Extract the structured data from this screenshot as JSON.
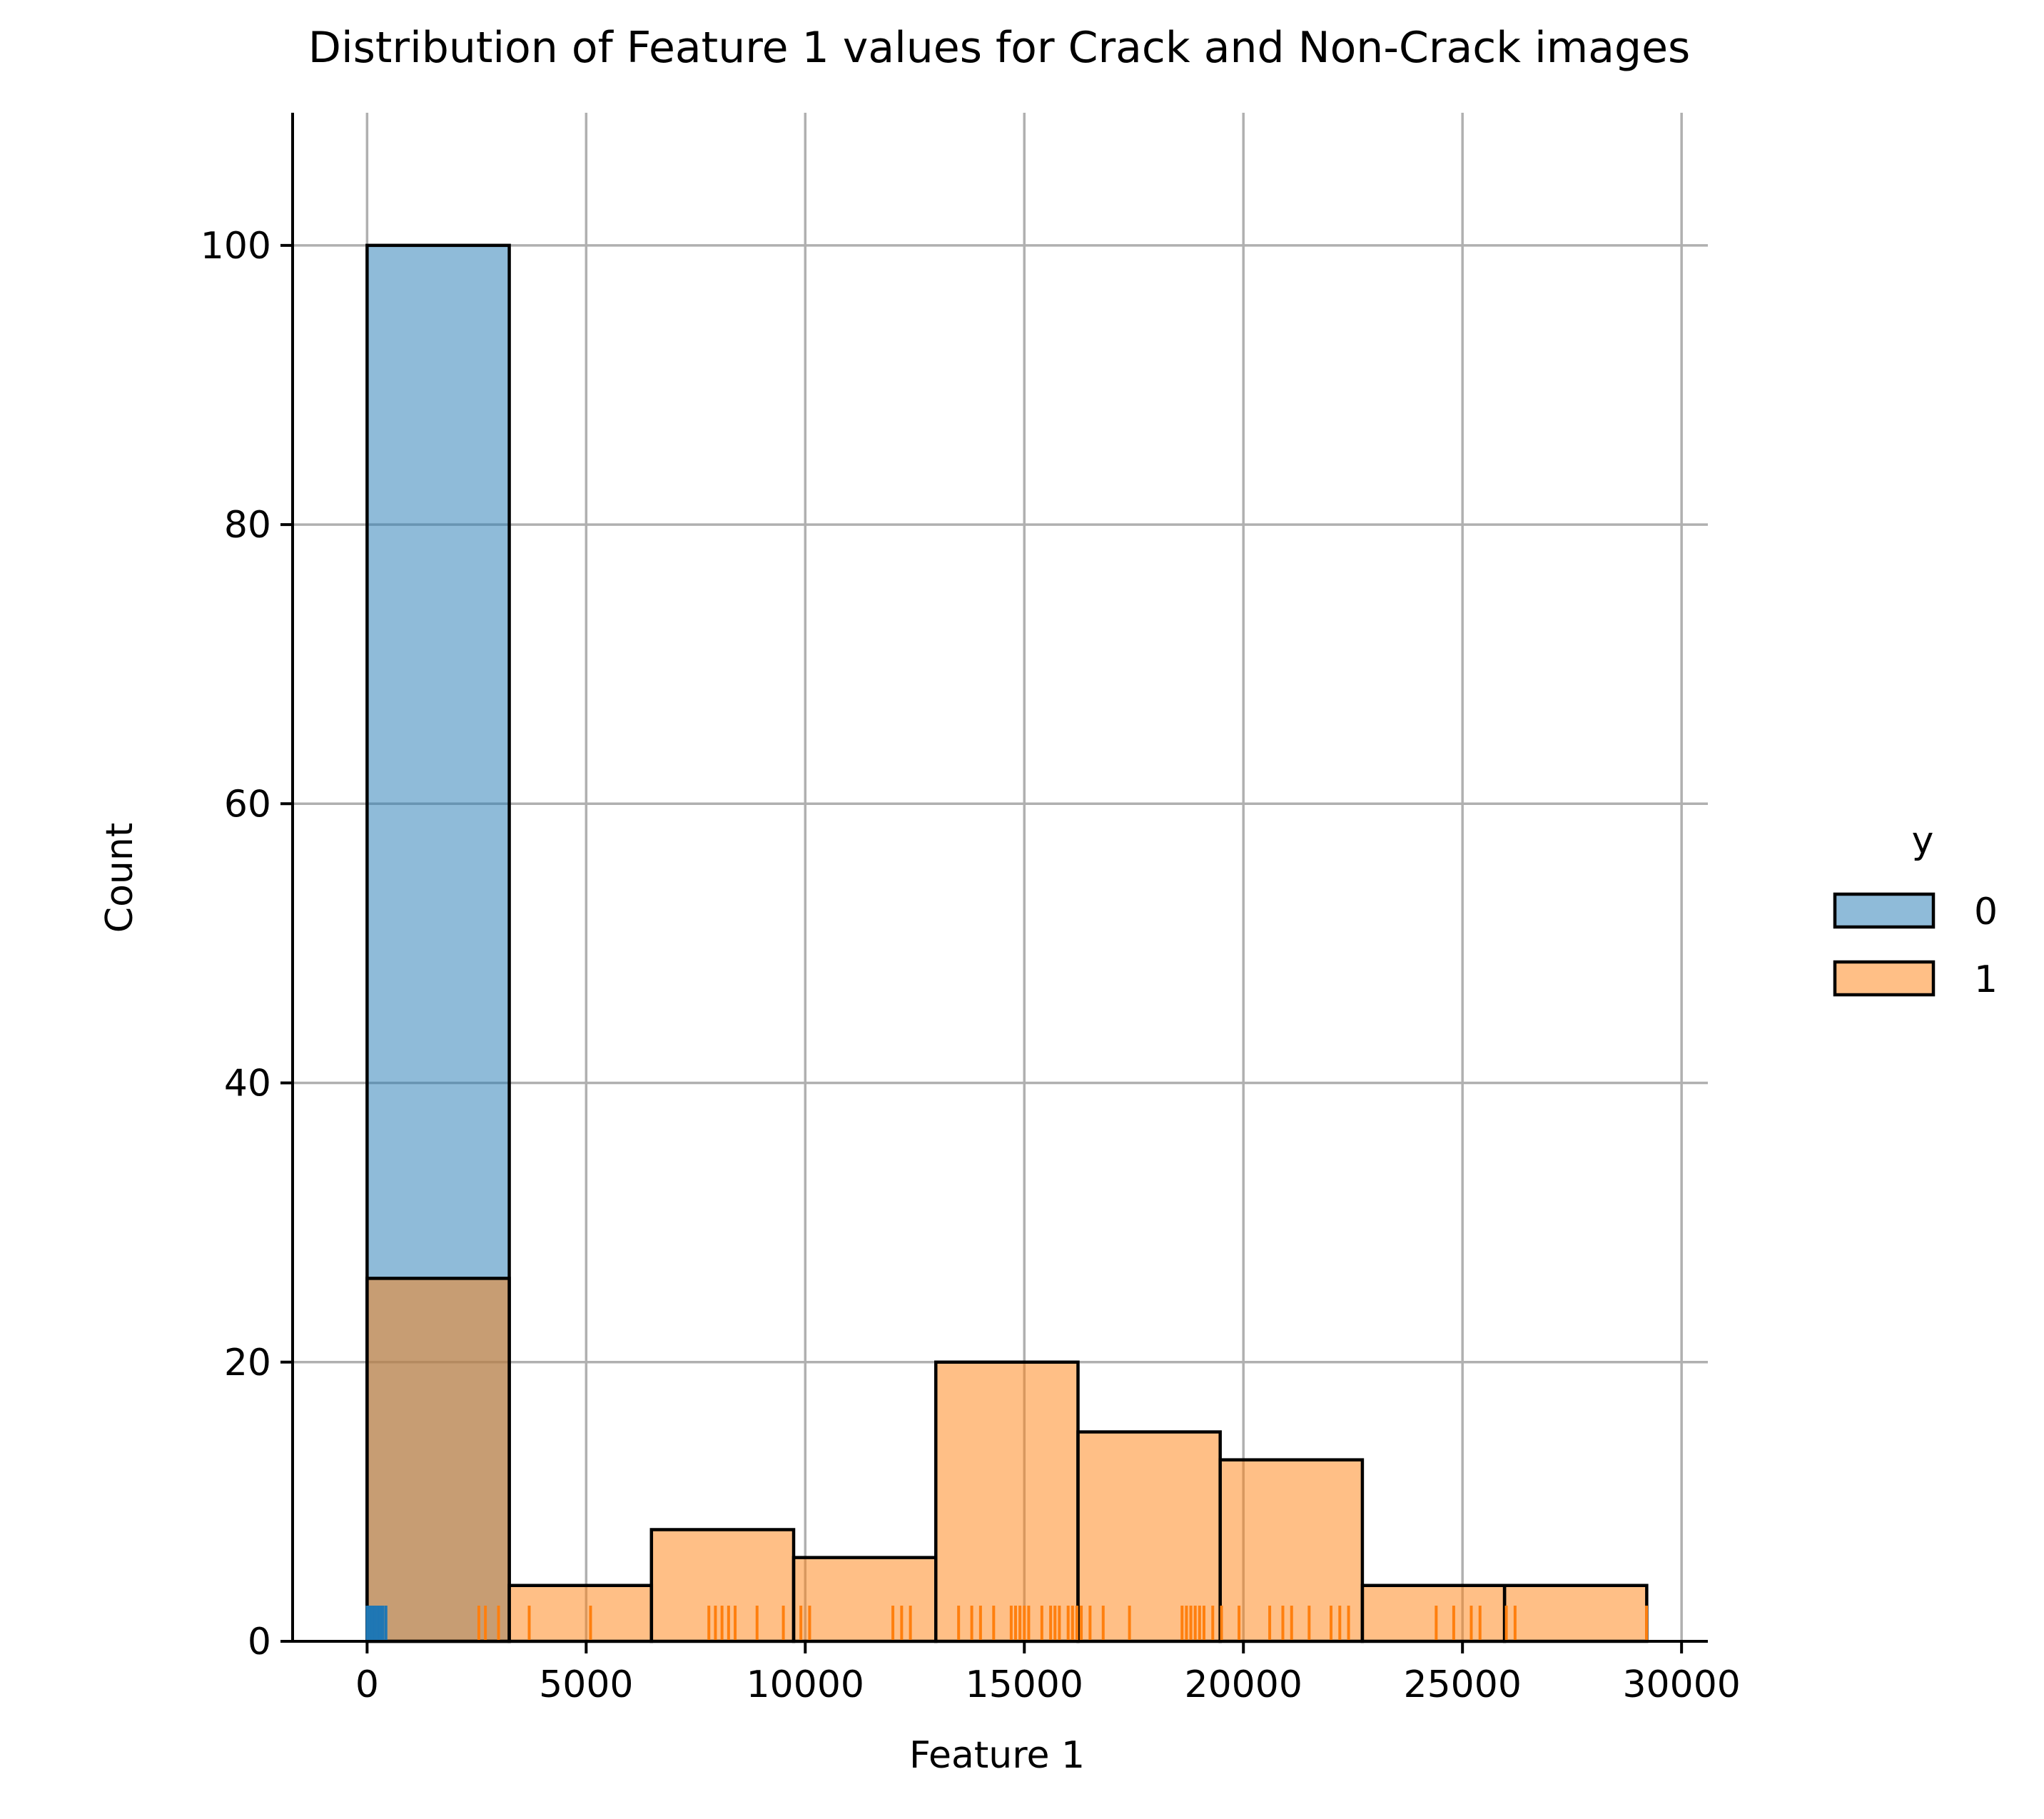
{
  "chart_data": {
    "type": "histogram",
    "title": "Distribution of Feature 1 values for Crack and Non-Crack images",
    "xlabel": "Feature 1",
    "ylabel": "Count",
    "xlim": [
      -1700,
      30600
    ],
    "ylim": [
      0,
      109.5
    ],
    "xticks": [
      0,
      5000,
      10000,
      15000,
      20000,
      25000,
      30000
    ],
    "yticks": [
      0,
      20,
      40,
      60,
      80,
      100
    ],
    "grid": true,
    "legend": {
      "title": "y",
      "position": "right"
    },
    "bin_edges": [
      0,
      3245,
      6490,
      9735,
      12980,
      16225,
      19470,
      22715,
      25960,
      29205
    ],
    "series": [
      {
        "name": "0",
        "color": "#1f77b4",
        "fill_color": "#8fb8d9",
        "counts": [
          100,
          0,
          0,
          0,
          0,
          0,
          0,
          0,
          0
        ],
        "rug": [
          0,
          60,
          120,
          180,
          240,
          300,
          360,
          430
        ]
      },
      {
        "name": "1",
        "color": "#ff7f0e",
        "fill_color": "#fdbb84",
        "counts": [
          26,
          4,
          8,
          6,
          20,
          15,
          13,
          4,
          4
        ],
        "rug": [
          2550,
          2700,
          3000,
          3700,
          5100,
          7800,
          7950,
          8100,
          8250,
          8400,
          8900,
          9500,
          9900,
          10100,
          12000,
          12200,
          12400,
          13500,
          13800,
          14000,
          14300,
          14700,
          14800,
          14900,
          15000,
          15100,
          15400,
          15600,
          15700,
          15800,
          16000,
          16100,
          16200,
          16300,
          16500,
          16800,
          17400,
          18600,
          18700,
          18800,
          18900,
          19000,
          19100,
          19300,
          19500,
          19900,
          20600,
          20900,
          21100,
          21500,
          22000,
          22200,
          22400,
          24400,
          24800,
          25200,
          25400,
          26000,
          26200,
          29200
        ]
      }
    ]
  }
}
